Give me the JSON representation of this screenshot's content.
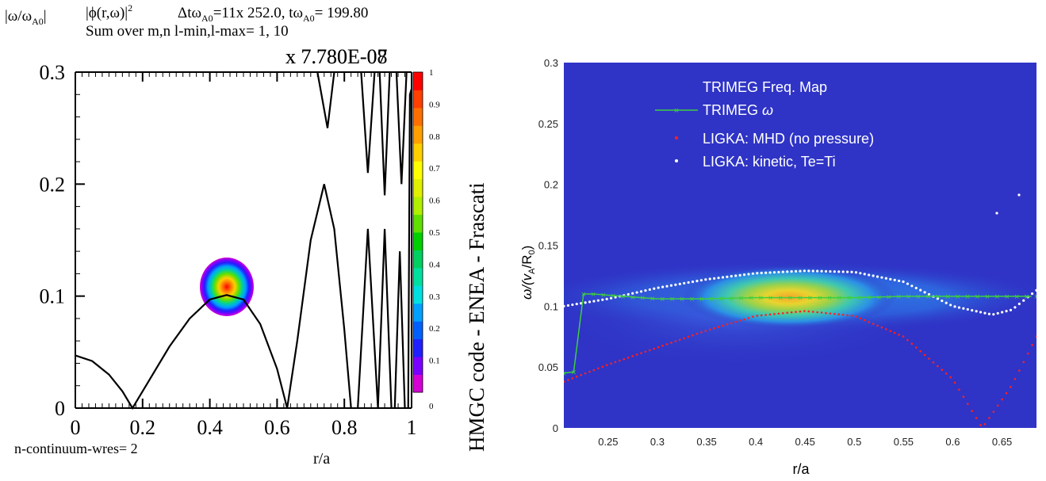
{
  "left_panel": {
    "header": {
      "ylabel": "|ω/ω",
      "ylabel_sub": "A0",
      "ylabel_end": "|",
      "phi": "|ϕ(r,ω)|",
      "phi_sup": "2",
      "dt": "Δtω",
      "dt_sub": "A0",
      "dt_val": "=11x 252.0, tω",
      "t_sub": "A0",
      "t_val": "= 199.80",
      "sum_line": "Sum over m,n l-min,l-max=  1, 10"
    },
    "scale_a": "x 7.780E-07",
    "scale_b": "x 7.780E-08",
    "xlabel": "r/a",
    "footer": "n-continuum-wres= 2",
    "side_title": "HMGC code - ENEA - Frascati",
    "xticks": [
      "0",
      "0.2",
      "0.4",
      "0.6",
      "0.8",
      "1"
    ],
    "yticks": [
      "0",
      "0.1",
      "0.2",
      "0.3"
    ],
    "colorbar_ticks": [
      "0",
      "0.1",
      "0.2",
      "0.3",
      "0.4",
      "0.5",
      "0.6",
      "0.7",
      "0.8",
      "0.9",
      "1"
    ],
    "colorbar_colors": [
      "#d400d4",
      "#7a00ff",
      "#2020ff",
      "#0060ff",
      "#00a0ff",
      "#00e0e0",
      "#00e0a0",
      "#00d060",
      "#00d000",
      "#60e000",
      "#b0f000",
      "#e0f000",
      "#ffff00",
      "#ffd000",
      "#ffa000",
      "#ff7000",
      "#ff4000",
      "#ff0000"
    ]
  },
  "right_panel": {
    "ylabel": "ω/(v",
    "ylabel_sub1": "A",
    "ylabel_mid": "/R",
    "ylabel_sub2": "0",
    "ylabel_end": ")",
    "xlabel": "r/a",
    "xticks": [
      "0.25",
      "0.3",
      "0.35",
      "0.4",
      "0.45",
      "0.5",
      "0.55",
      "0.6",
      "0.65"
    ],
    "yticks": [
      "0",
      "0.05",
      "0.1",
      "0.15",
      "0.2",
      "0.25",
      "0.3"
    ],
    "legend": [
      "TRIMEG Freq. Map",
      "TRIMEG ",
      "LIGKA: MHD (no pressure)",
      "LIGKA: kinetic, Te=Ti"
    ],
    "legend_omega": "ω",
    "colors": {
      "background": "#2f34c6",
      "trimeg": "#3ecf3e",
      "mhd": "#ff2020",
      "kinetic": "#ffffff"
    }
  },
  "chart_data": [
    {
      "type": "line",
      "title": "",
      "xlabel": "r/a",
      "ylabel": "|ω/ωA0|",
      "xlim": [
        0,
        1
      ],
      "ylim": [
        0,
        0.3
      ],
      "series": [
        {
          "x": [
            0.0,
            0.05,
            0.1,
            0.14,
            0.17,
            0.22,
            0.28,
            0.34,
            0.4,
            0.45,
            0.5,
            0.55,
            0.6,
            0.63,
            0.66,
            0.7,
            0.74,
            0.77,
            0.8,
            0.82
          ],
          "y": [
            0.047,
            0.042,
            0.03,
            0.015,
            0.0,
            0.025,
            0.055,
            0.08,
            0.097,
            0.101,
            0.097,
            0.075,
            0.035,
            0.0,
            0.06,
            0.15,
            0.2,
            0.16,
            0.07,
            0.0
          ]
        }
      ],
      "heatmap_spot": {
        "r": 0.45,
        "omega": 0.105,
        "peak": 1.0
      }
    },
    {
      "type": "heatmap",
      "title": "",
      "xlabel": "r/a",
      "ylabel": "ω/(vA/R0)",
      "xlim": [
        0.205,
        0.685
      ],
      "ylim": [
        0,
        0.3
      ],
      "heatmap_peak": {
        "r": 0.45,
        "omega": 0.107
      },
      "series": [
        {
          "name": "TRIMEG ω",
          "x": [
            0.205,
            0.215,
            0.225,
            0.235,
            0.25,
            0.3,
            0.35,
            0.4,
            0.45,
            0.5,
            0.55,
            0.6,
            0.65,
            0.68
          ],
          "y": [
            0.045,
            0.046,
            0.11,
            0.11,
            0.109,
            0.106,
            0.106,
            0.107,
            0.107,
            0.107,
            0.108,
            0.108,
            0.108,
            0.108
          ]
        },
        {
          "name": "LIGKA: MHD (no pressure)",
          "x": [
            0.205,
            0.25,
            0.3,
            0.35,
            0.4,
            0.45,
            0.5,
            0.55,
            0.6,
            0.63,
            0.66,
            0.685
          ],
          "y": [
            0.038,
            0.052,
            0.066,
            0.08,
            0.092,
            0.096,
            0.092,
            0.075,
            0.04,
            0.0,
            0.035,
            0.075
          ]
        },
        {
          "name": "LIGKA: kinetic, Te=Ti",
          "x": [
            0.205,
            0.25,
            0.3,
            0.35,
            0.4,
            0.45,
            0.5,
            0.55,
            0.6,
            0.64,
            0.66,
            0.685
          ],
          "y": [
            0.1,
            0.106,
            0.115,
            0.122,
            0.127,
            0.129,
            0.128,
            0.12,
            0.1,
            0.093,
            0.097,
            0.113
          ]
        }
      ]
    }
  ]
}
